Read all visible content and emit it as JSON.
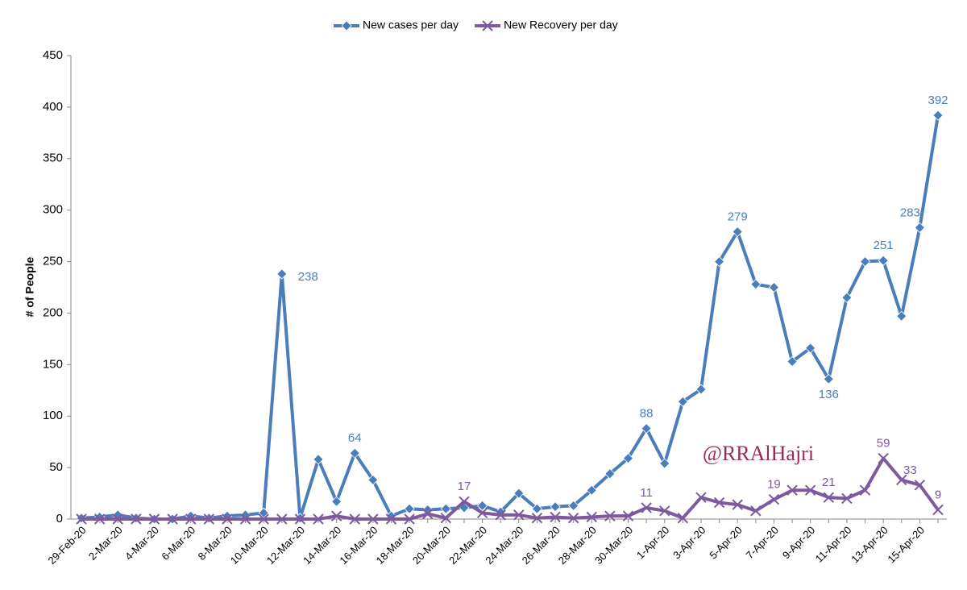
{
  "chart_data": {
    "type": "line",
    "ylabel": "# of People",
    "annotation": "@RRAlHajri",
    "categories": [
      "29-Feb-20",
      null,
      "2-Mar-20",
      null,
      "4-Mar-20",
      null,
      "6-Mar-20",
      null,
      "8-Mar-20",
      null,
      "10-Mar-20",
      null,
      "12-Mar-20",
      null,
      "14-Mar-20",
      null,
      "16-Mar-20",
      null,
      "18-Mar-20",
      null,
      "20-Mar-20",
      null,
      "22-Mar-20",
      null,
      "24-Mar-20",
      null,
      "26-Mar-20",
      null,
      "28-Mar-20",
      null,
      "30-Mar-20",
      null,
      "1-Apr-20",
      null,
      "3-Apr-20",
      null,
      "5-Apr-20",
      null,
      "7-Apr-20",
      null,
      "9-Apr-20",
      null,
      "11-Apr-20",
      null,
      "13-Apr-20",
      null,
      "15-Apr-20",
      null
    ],
    "series": [
      {
        "name": "New cases per day",
        "color": "#4a7ebb",
        "marker": "diamond",
        "values": [
          1,
          2,
          4,
          1,
          0,
          0,
          3,
          1,
          3,
          4,
          6,
          238,
          1,
          58,
          17,
          64,
          38,
          3,
          10,
          9,
          10,
          11,
          13,
          7,
          25,
          10,
          12,
          13,
          28,
          44,
          59,
          88,
          54,
          114,
          126,
          250,
          279,
          228,
          225,
          153,
          166,
          136,
          215,
          250,
          251,
          197,
          283,
          392
        ],
        "value_labels": [
          null,
          null,
          null,
          null,
          null,
          null,
          null,
          null,
          null,
          null,
          null,
          238,
          null,
          null,
          null,
          64,
          null,
          null,
          null,
          null,
          null,
          null,
          null,
          null,
          null,
          null,
          null,
          null,
          null,
          null,
          null,
          88,
          null,
          null,
          null,
          null,
          279,
          null,
          null,
          null,
          null,
          136,
          null,
          null,
          251,
          null,
          283,
          392
        ]
      },
      {
        "name": "New Recovery per day",
        "color": "#7d5a9e",
        "marker": "x",
        "values": [
          0,
          0,
          0,
          0,
          0,
          0,
          0,
          0,
          0,
          0,
          0,
          0,
          0,
          0,
          3,
          0,
          0,
          0,
          0,
          5,
          1,
          17,
          6,
          4,
          4,
          1,
          2,
          1,
          2,
          3,
          3,
          11,
          8,
          1,
          21,
          16,
          14,
          8,
          19,
          28,
          28,
          21,
          20,
          28,
          59,
          38,
          33,
          9
        ],
        "value_labels": [
          null,
          null,
          null,
          null,
          null,
          null,
          null,
          null,
          null,
          null,
          null,
          null,
          null,
          null,
          null,
          null,
          null,
          null,
          null,
          null,
          null,
          17,
          null,
          null,
          null,
          null,
          null,
          null,
          null,
          null,
          null,
          11,
          null,
          null,
          null,
          null,
          null,
          null,
          19,
          null,
          null,
          21,
          null,
          null,
          59,
          null,
          33,
          9
        ]
      }
    ],
    "ylim": [
      0,
      450
    ],
    "yticks": [
      0,
      50,
      100,
      150,
      200,
      250,
      300,
      350,
      400,
      450
    ],
    "legend": "top",
    "grid": false
  }
}
